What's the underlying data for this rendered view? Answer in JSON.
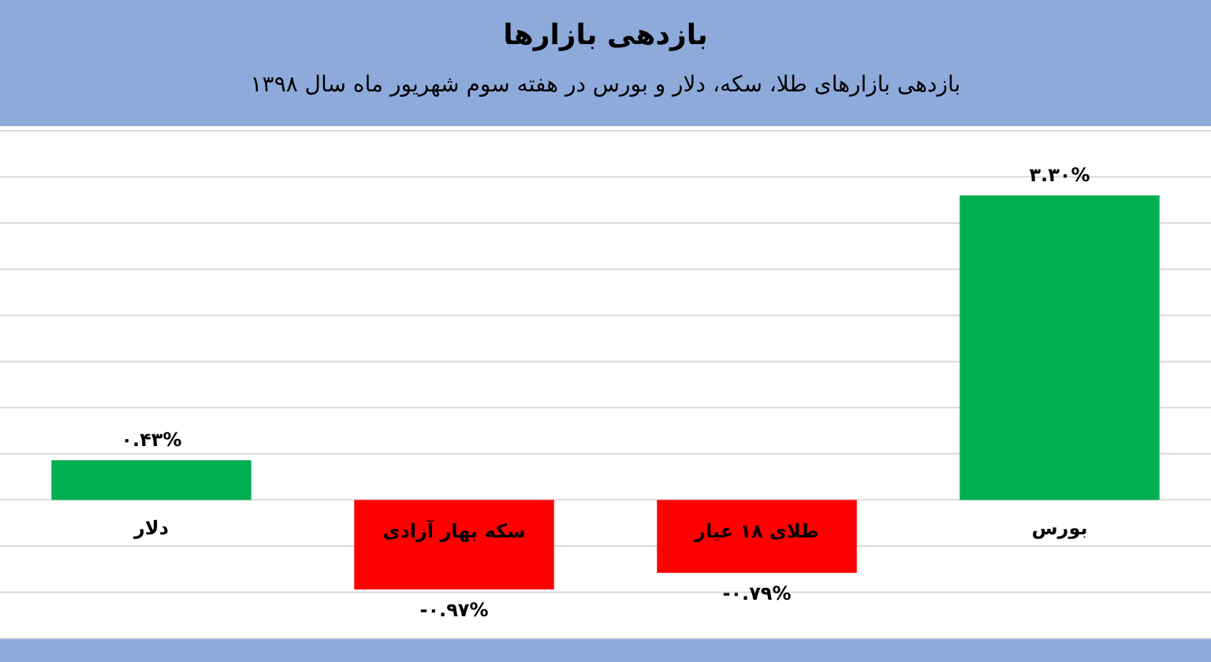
{
  "chart_data": {
    "type": "bar",
    "title": "بازدهی بازارها",
    "subtitle": "بازدهی بازارهای طلا، سکه، دلار و بورس در هفته سوم شهریور ماه سال ۱۳۹۸",
    "categories": [
      "دلار",
      "سکه بهار آزادی",
      "طلای ۱۸ عیار",
      "بورس"
    ],
    "values": [
      0.43,
      -0.97,
      -0.79,
      3.3
    ],
    "colors": [
      "#00b050",
      "#ff0000",
      "#ff0000",
      "#00b050"
    ],
    "value_labels": [
      "۰.۴۳%",
      "-۰.۹۷%",
      "-۰.۷۹%",
      "۳.۳۰%"
    ],
    "ylim": [
      -1.5,
      4
    ],
    "yticks": [
      {
        "value": -1.5,
        "label": null
      },
      {
        "value": -1,
        "label": null
      },
      {
        "value": -0.5,
        "label": null
      },
      {
        "value": 0,
        "label": null
      },
      {
        "value": 0.5,
        "label": null
      },
      {
        "value": 1,
        "label": null
      },
      {
        "value": 1.5,
        "label": null
      },
      {
        "value": 2,
        "label": null
      },
      {
        "value": 2.5,
        "label": null
      },
      {
        "value": 3,
        "label": null
      },
      {
        "value": 3.5,
        "label": null
      },
      {
        "value": 4,
        "label": null
      }
    ],
    "grid": "y",
    "tick_labels": "x"
  }
}
